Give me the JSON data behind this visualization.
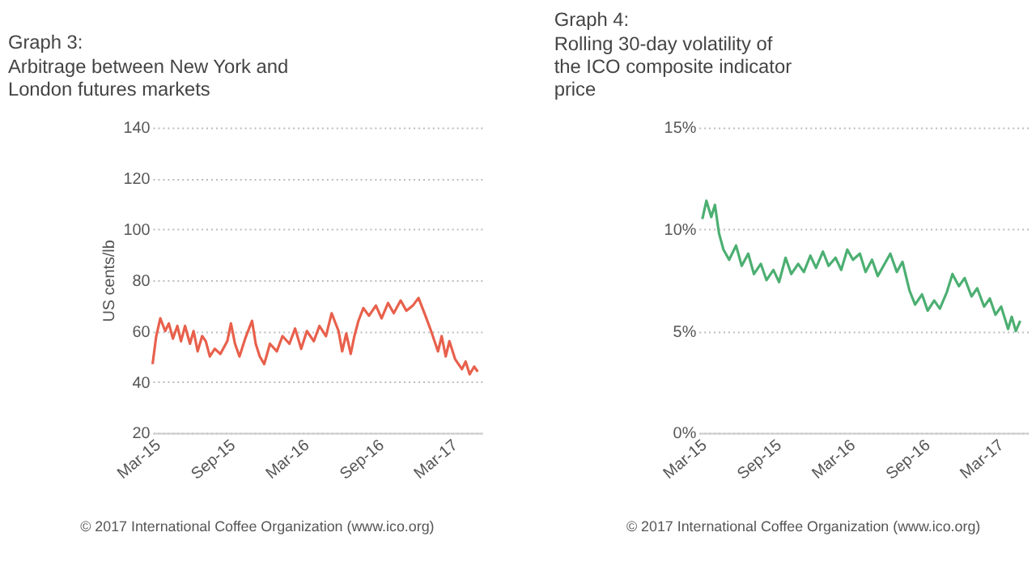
{
  "chart_data": [
    {
      "type": "line",
      "title": "Graph 3:",
      "subtitle": "Arbitrage between New York and London futures markets",
      "ylabel": "US cents/lb",
      "annotations": [
        "© 2017 International Coffee Organization (www.ico.org)"
      ],
      "grid": "y",
      "legend": false,
      "marker": "none",
      "line_style": "solid",
      "ylim": [
        20,
        140
      ],
      "yticks": [
        20,
        40,
        60,
        80,
        100,
        120,
        140
      ],
      "xlim": [
        "2015-03-01",
        "2017-05-20"
      ],
      "xticks": [
        {
          "value": "2015-03-01",
          "label": "Mar-15"
        },
        {
          "value": "2015-09-01",
          "label": "Sep-15"
        },
        {
          "value": "2016-03-01",
          "label": "Mar-16"
        },
        {
          "value": "2016-09-01",
          "label": "Sep-16"
        },
        {
          "value": "2017-03-01",
          "label": "Mar-17"
        }
      ],
      "series": [
        {
          "color": "#e8604c",
          "x": [
            "2015-03-01",
            "2015-03-10",
            "2015-03-20",
            "2015-04-01",
            "2015-04-10",
            "2015-04-20",
            "2015-05-01",
            "2015-05-10",
            "2015-05-20",
            "2015-06-01",
            "2015-06-10",
            "2015-06-20",
            "2015-07-01",
            "2015-07-10",
            "2015-07-20",
            "2015-08-01",
            "2015-08-15",
            "2015-09-01",
            "2015-09-10",
            "2015-09-20",
            "2015-10-01",
            "2015-10-15",
            "2015-11-01",
            "2015-11-10",
            "2015-11-20",
            "2015-12-01",
            "2015-12-15",
            "2016-01-01",
            "2016-01-15",
            "2016-02-01",
            "2016-02-15",
            "2016-03-01",
            "2016-03-15",
            "2016-04-01",
            "2016-04-15",
            "2016-05-01",
            "2016-05-15",
            "2016-06-01",
            "2016-06-10",
            "2016-06-20",
            "2016-07-01",
            "2016-07-10",
            "2016-07-20",
            "2016-08-01",
            "2016-08-15",
            "2016-09-01",
            "2016-09-15",
            "2016-10-01",
            "2016-10-15",
            "2016-11-01",
            "2016-11-15",
            "2016-12-01",
            "2016-12-15",
            "2017-01-01",
            "2017-01-15",
            "2017-02-01",
            "2017-02-10",
            "2017-02-20",
            "2017-03-01",
            "2017-03-15",
            "2017-04-01",
            "2017-04-10",
            "2017-04-20",
            "2017-05-01",
            "2017-05-10"
          ],
          "values": [
            47,
            58,
            65,
            60,
            63,
            57,
            62,
            56,
            62,
            55,
            60,
            52,
            58,
            56,
            50,
            53,
            51,
            56,
            63,
            55,
            50,
            57,
            64,
            55,
            50,
            47,
            55,
            52,
            58,
            55,
            61,
            53,
            60,
            56,
            62,
            58,
            67,
            60,
            52,
            59,
            51,
            58,
            64,
            69,
            66,
            70,
            65,
            71,
            67,
            72,
            68,
            70,
            73,
            66,
            60,
            52,
            58,
            50,
            56,
            49,
            45,
            48,
            43,
            46,
            44
          ]
        }
      ]
    },
    {
      "type": "line",
      "title": "Graph 4:",
      "subtitle": "Rolling 30-day volatility of the ICO composite indicator price",
      "annotations": [
        "© 2017 International Coffee Organization (www.ico.org)"
      ],
      "grid": "y",
      "legend": false,
      "marker": "none",
      "line_style": "solid",
      "ylim": [
        0,
        15
      ],
      "yticks": [
        {
          "value": 0,
          "label": "0%"
        },
        {
          "value": 5,
          "label": "5%"
        },
        {
          "value": 10,
          "label": "10%"
        },
        {
          "value": 15,
          "label": "15%"
        }
      ],
      "xlim": [
        "2015-03-01",
        "2017-05-20"
      ],
      "xticks": [
        {
          "value": "2015-03-01",
          "label": "Mar-15"
        },
        {
          "value": "2015-09-01",
          "label": "Sep-15"
        },
        {
          "value": "2016-03-01",
          "label": "Mar-16"
        },
        {
          "value": "2016-09-01",
          "label": "Sep-16"
        },
        {
          "value": "2017-03-01",
          "label": "Mar-17"
        }
      ],
      "series": [
        {
          "color": "#4caf72",
          "x": [
            "2015-03-10",
            "2015-03-20",
            "2015-04-01",
            "2015-04-10",
            "2015-04-20",
            "2015-05-01",
            "2015-05-15",
            "2015-06-01",
            "2015-06-15",
            "2015-07-01",
            "2015-07-15",
            "2015-08-01",
            "2015-08-15",
            "2015-09-01",
            "2015-09-15",
            "2015-10-01",
            "2015-10-15",
            "2015-11-01",
            "2015-11-15",
            "2015-12-01",
            "2015-12-15",
            "2016-01-01",
            "2016-01-15",
            "2016-02-01",
            "2016-02-15",
            "2016-03-01",
            "2016-03-15",
            "2016-04-01",
            "2016-04-15",
            "2016-05-01",
            "2016-05-15",
            "2016-06-01",
            "2016-06-15",
            "2016-07-01",
            "2016-07-15",
            "2016-08-01",
            "2016-08-15",
            "2016-09-01",
            "2016-09-15",
            "2016-10-01",
            "2016-10-15",
            "2016-11-01",
            "2016-11-15",
            "2016-12-01",
            "2016-12-15",
            "2017-01-01",
            "2017-01-15",
            "2017-02-01",
            "2017-02-15",
            "2017-03-01",
            "2017-03-15",
            "2017-04-01",
            "2017-04-10",
            "2017-04-20",
            "2017-05-01"
          ],
          "values": [
            10.5,
            11.4,
            10.6,
            11.2,
            9.8,
            9.0,
            8.5,
            9.2,
            8.2,
            8.8,
            7.8,
            8.3,
            7.5,
            8.0,
            7.4,
            8.6,
            7.8,
            8.3,
            7.9,
            8.7,
            8.1,
            8.9,
            8.2,
            8.6,
            8.0,
            9.0,
            8.5,
            8.8,
            7.9,
            8.5,
            7.7,
            8.3,
            8.8,
            7.9,
            8.4,
            7.0,
            6.3,
            6.8,
            6.0,
            6.5,
            6.1,
            6.9,
            7.8,
            7.2,
            7.6,
            6.7,
            7.1,
            6.2,
            6.6,
            5.8,
            6.2,
            5.1,
            5.7,
            5.0,
            5.5
          ]
        }
      ]
    }
  ]
}
